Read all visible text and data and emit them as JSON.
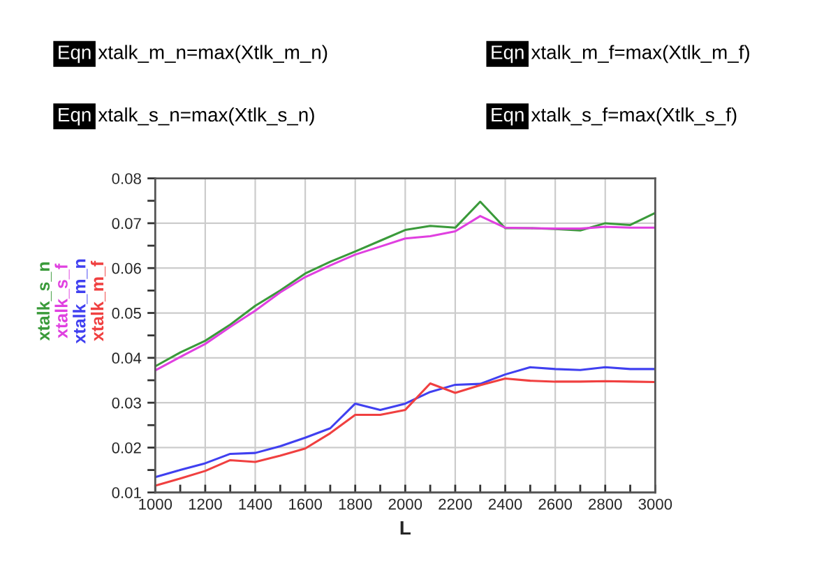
{
  "chart_data": {
    "type": "line",
    "annotations": [
      "Eqn",
      "xtalk_m_n=max(Xtlk_m_n)",
      "Eqn",
      "xtalk_m_f=max(Xtlk_m_f)",
      "Eqn",
      "xtalk_s_n=max(Xtlk_s_n)",
      "Eqn",
      "xtalk_s_f=max(Xtlk_s_f)"
    ],
    "xlabel": "L",
    "x": [
      1000,
      1100,
      1200,
      1300,
      1400,
      1500,
      1600,
      1700,
      1800,
      1900,
      2000,
      2100,
      2200,
      2300,
      2400,
      2500,
      2600,
      2700,
      2800,
      2900,
      3000
    ],
    "series": [
      {
        "name": "xtalk_s_n",
        "color": "#3a9a3a",
        "values": [
          0.0381,
          0.0412,
          0.0438,
          0.0474,
          0.0516,
          0.055,
          0.0588,
          0.0614,
          0.0637,
          0.0661,
          0.0685,
          0.0694,
          0.069,
          0.0748,
          0.0689,
          0.0689,
          0.0687,
          0.0684,
          0.07,
          0.0696,
          0.0723
        ]
      },
      {
        "name": "xtalk_s_f",
        "color": "#e040e0",
        "values": [
          0.0372,
          0.0402,
          0.0431,
          0.0469,
          0.0505,
          0.0546,
          0.058,
          0.0606,
          0.063,
          0.0648,
          0.0666,
          0.0671,
          0.0682,
          0.0716,
          0.069,
          0.0689,
          0.0688,
          0.0688,
          0.0692,
          0.069,
          0.069
        ]
      },
      {
        "name": "xtalk_m_n",
        "color": "#4040f0",
        "values": [
          0.0134,
          0.015,
          0.0165,
          0.0186,
          0.0188,
          0.0203,
          0.0222,
          0.0243,
          0.0298,
          0.0284,
          0.0298,
          0.0324,
          0.034,
          0.0342,
          0.0363,
          0.0379,
          0.0375,
          0.0373,
          0.0379,
          0.0375,
          0.0375
        ]
      },
      {
        "name": "xtalk_m_f",
        "color": "#f04040",
        "values": [
          0.0115,
          0.0131,
          0.0148,
          0.0172,
          0.0168,
          0.0182,
          0.0198,
          0.0232,
          0.0273,
          0.0273,
          0.0284,
          0.0343,
          0.0322,
          0.0339,
          0.0354,
          0.0349,
          0.0347,
          0.0347,
          0.0348,
          0.0347,
          0.0346
        ]
      }
    ],
    "xlim": [
      1000,
      3000
    ],
    "xticks": [
      1000,
      {
        "value": 1100,
        "label": null
      },
      1200,
      {
        "value": 1300,
        "label": null
      },
      1400,
      {
        "value": 1500,
        "label": null
      },
      1600,
      {
        "value": 1700,
        "label": null
      },
      1800,
      {
        "value": 1900,
        "label": null
      },
      2000,
      {
        "value": 2100,
        "label": null
      },
      2200,
      {
        "value": 2300,
        "label": null
      },
      2400,
      {
        "value": 2500,
        "label": null
      },
      2600,
      {
        "value": 2700,
        "label": null
      },
      2800,
      {
        "value": 2900,
        "label": null
      },
      3000
    ],
    "ylim": [
      0.01,
      0.08
    ],
    "yticks": [
      0.01,
      {
        "value": 0.015,
        "label": null
      },
      0.02,
      {
        "value": 0.025,
        "label": null
      },
      0.03,
      {
        "value": 0.035,
        "label": null
      },
      0.04,
      {
        "value": 0.045,
        "label": null
      },
      0.05,
      {
        "value": 0.055,
        "label": null
      },
      0.06,
      {
        "value": 0.065,
        "label": null
      },
      0.07,
      {
        "value": 0.075,
        "label": null
      },
      0.08
    ],
    "grid": true,
    "legend": "left",
    "marker": "none",
    "line_style": "solid"
  }
}
